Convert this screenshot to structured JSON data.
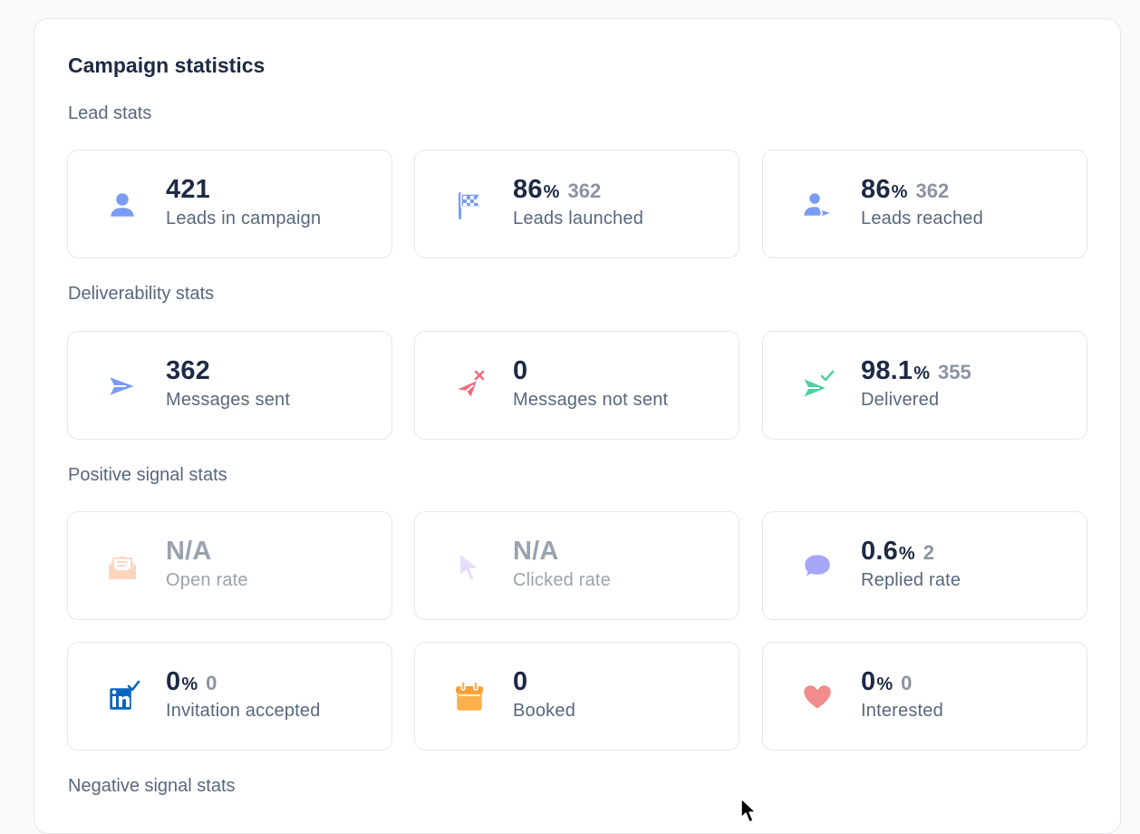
{
  "panel": {
    "title": "Campaign statistics"
  },
  "sections": {
    "lead": "Lead stats",
    "deliverability": "Deliverability stats",
    "positive": "Positive signal stats",
    "negative": "Negative signal stats"
  },
  "cards": {
    "leads_in_campaign": {
      "value": "421",
      "label": "Leads in campaign",
      "icon": "user-icon"
    },
    "leads_launched": {
      "value": "86",
      "pct": "%",
      "count": "362",
      "label": "Leads launched",
      "icon": "checkered-flag-icon"
    },
    "leads_reached": {
      "value": "86",
      "pct": "%",
      "count": "362",
      "label": "Leads reached",
      "icon": "user-send-icon"
    },
    "messages_sent": {
      "value": "362",
      "label": "Messages sent",
      "icon": "paper-plane-icon"
    },
    "messages_not_sent": {
      "value": "0",
      "label": "Messages not sent",
      "icon": "paper-plane-failed-icon"
    },
    "delivered": {
      "value": "98.1",
      "pct": "%",
      "count": "355",
      "label": "Delivered",
      "icon": "paper-plane-check-icon"
    },
    "open_rate": {
      "value": "N/A",
      "label": "Open rate",
      "icon": "open-envelope-icon"
    },
    "clicked_rate": {
      "value": "N/A",
      "label": "Clicked rate",
      "icon": "cursor-click-icon"
    },
    "replied_rate": {
      "value": "0.6",
      "pct": "%",
      "count": "2",
      "label": "Replied rate",
      "icon": "chat-bubble-icon"
    },
    "invitation_accepted": {
      "value": "0",
      "pct": "%",
      "count": "0",
      "label": "Invitation accepted",
      "icon": "linkedin-check-icon"
    },
    "booked": {
      "value": "0",
      "label": "Booked",
      "icon": "calendar-icon"
    },
    "interested": {
      "value": "0",
      "pct": "%",
      "count": "0",
      "label": "Interested",
      "icon": "heart-icon"
    }
  },
  "colors": {
    "blue_icon": "#7a9cf6",
    "red_icon": "#f06a7a",
    "green_icon": "#4fd1a1",
    "purple_icon": "#a5a6f6",
    "orange_icon": "#fbb04b",
    "pink_icon": "#f28b8b",
    "linkedin_blue": "#0a66c2"
  }
}
